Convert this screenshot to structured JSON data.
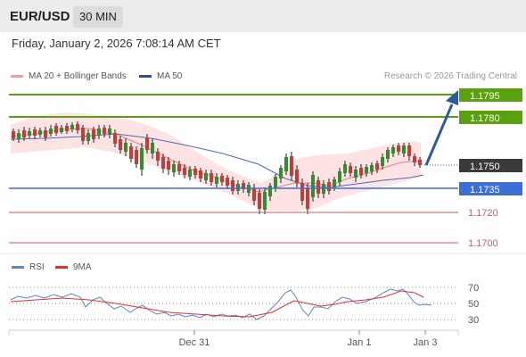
{
  "header": {
    "symbol": "EUR/USD",
    "timeframe": "30 MIN"
  },
  "datetime": "Friday, January 2, 2026 7:08:14 AM CET",
  "legend": {
    "ma20_label": "MA 20 + Bollinger Bands",
    "ma50_label": "MA 50",
    "credit": "Research © 2026 Trading Central"
  },
  "colors": {
    "green_level": "#5aa00f",
    "blue_level": "#3b6fd6",
    "red_level": "#e25555",
    "current_price": "#3a3a3a",
    "bollinger": "#fde3e3",
    "ma20": "#f08080",
    "ma50": "#4a6fb0",
    "arrow": "#2c5a9e",
    "rsi": "#5b84d6",
    "rsi_ma": "#e53030"
  },
  "levels": [
    {
      "value": "1.1795",
      "kind": "resistance"
    },
    {
      "value": "1.1780",
      "kind": "resistance"
    },
    {
      "value": "1.1750",
      "kind": "current"
    },
    {
      "value": "1.1735",
      "kind": "pivot"
    },
    {
      "value": "1.1720",
      "kind": "support"
    },
    {
      "value": "1.1700",
      "kind": "support"
    }
  ],
  "rsi_panel": {
    "rsi_label": "RSI",
    "ma_label": "9MA",
    "ticks": [
      "70",
      "50",
      "30"
    ]
  },
  "time_axis": [
    "Dec 31",
    "Jan 1",
    "Jan 3"
  ]
}
